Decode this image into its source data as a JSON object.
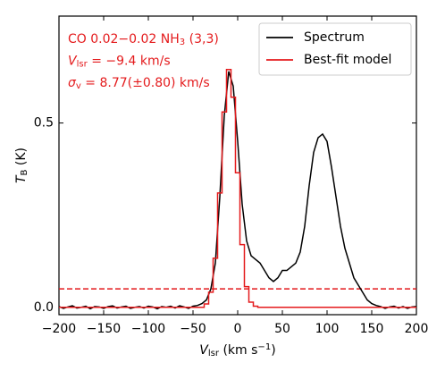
{
  "chart_data": {
    "type": "line",
    "annotations": [
      [
        "CO 0.02−0.02 NH",
        {
          "sub": "3"
        },
        " (3,3)"
      ],
      [
        {
          "it": "V"
        },
        {
          "sub": "lsr"
        },
        " = −9.4 km/s"
      ],
      [
        {
          "it": "σ"
        },
        {
          "sub": "v"
        },
        " = 8.77(±0.80) km/s"
      ]
    ],
    "annotation_color": "#e41a1c",
    "xlabel": [
      {
        "it": "V"
      },
      {
        "sub": "lsr"
      },
      " (km s",
      {
        "sup": "−1"
      },
      ")"
    ],
    "ylabel": [
      {
        "it": "T"
      },
      {
        "sub": "B"
      },
      " (K)"
    ],
    "x": [
      -200,
      -195,
      -190,
      -185,
      -180,
      -175,
      -170,
      -165,
      -160,
      -155,
      -150,
      -145,
      -140,
      -135,
      -130,
      -125,
      -120,
      -115,
      -110,
      -105,
      -100,
      -95,
      -90,
      -85,
      -80,
      -75,
      -70,
      -65,
      -60,
      -55,
      -50,
      -45,
      -40,
      -35,
      -30,
      -25,
      -20,
      -15,
      -10,
      -5,
      0,
      5,
      10,
      15,
      20,
      25,
      30,
      35,
      40,
      45,
      50,
      55,
      60,
      65,
      70,
      75,
      80,
      85,
      90,
      95,
      100,
      105,
      110,
      115,
      120,
      125,
      130,
      135,
      140,
      145,
      150,
      155,
      160,
      165,
      170,
      175,
      180,
      185,
      190,
      195,
      200
    ],
    "series": [
      {
        "name": "Spectrum",
        "color": "#000000",
        "drawstyle": "line",
        "values": [
          0.002,
          -0.003,
          0.001,
          0.004,
          -0.002,
          0.0,
          0.003,
          -0.004,
          0.002,
          0.001,
          -0.003,
          0.002,
          0.004,
          -0.002,
          0.001,
          0.003,
          -0.003,
          0.0,
          0.002,
          -0.002,
          0.003,
          0.001,
          -0.004,
          0.002,
          0.0,
          0.003,
          -0.002,
          0.004,
          0.001,
          -0.003,
          0.003,
          0.005,
          0.01,
          0.02,
          0.05,
          0.12,
          0.3,
          0.52,
          0.64,
          0.6,
          0.45,
          0.28,
          0.18,
          0.14,
          0.13,
          0.12,
          0.1,
          0.08,
          0.07,
          0.08,
          0.1,
          0.1,
          0.11,
          0.12,
          0.15,
          0.22,
          0.33,
          0.42,
          0.46,
          0.47,
          0.45,
          0.38,
          0.3,
          0.22,
          0.16,
          0.12,
          0.08,
          0.06,
          0.04,
          0.02,
          0.01,
          0.005,
          0.002,
          -0.003,
          0.001,
          0.003,
          -0.002,
          0.002,
          -0.003,
          0.001,
          0.002
        ]
      },
      {
        "name": "Best-fit model",
        "color": "#e41a1c",
        "drawstyle": "steps-mid",
        "values": [
          0,
          0,
          0,
          0,
          0,
          0,
          0,
          0,
          0,
          0,
          0,
          0,
          0,
          0,
          0,
          0,
          0,
          0,
          0,
          0,
          0,
          0,
          0,
          0,
          0,
          0,
          0,
          0,
          0,
          0,
          0,
          0,
          0,
          0.009,
          0.041,
          0.133,
          0.31,
          0.53,
          0.645,
          0.57,
          0.365,
          0.17,
          0.056,
          0.014,
          0.003,
          0,
          0,
          0,
          0,
          0,
          0,
          0,
          0,
          0,
          0,
          0,
          0,
          0,
          0,
          0,
          0,
          0,
          0,
          0,
          0,
          0,
          0,
          0,
          0,
          0,
          0,
          0,
          0,
          0,
          0,
          0,
          0,
          0,
          0,
          0,
          0
        ]
      }
    ],
    "hline": {
      "y": 0.05,
      "color": "#e41a1c",
      "style": "dashed"
    },
    "xlim": [
      -200,
      200
    ],
    "ylim": [
      -0.02,
      0.79
    ],
    "xticks": [
      {
        "value": -200,
        "label": "−200"
      },
      {
        "value": -150,
        "label": "−150"
      },
      {
        "value": -100,
        "label": "−100"
      },
      {
        "value": -50,
        "label": "−50"
      },
      0,
      50,
      100,
      150,
      200
    ],
    "yticks": [
      {
        "value": 0,
        "label": "0.0"
      },
      0.5
    ],
    "legend": "upper right"
  }
}
